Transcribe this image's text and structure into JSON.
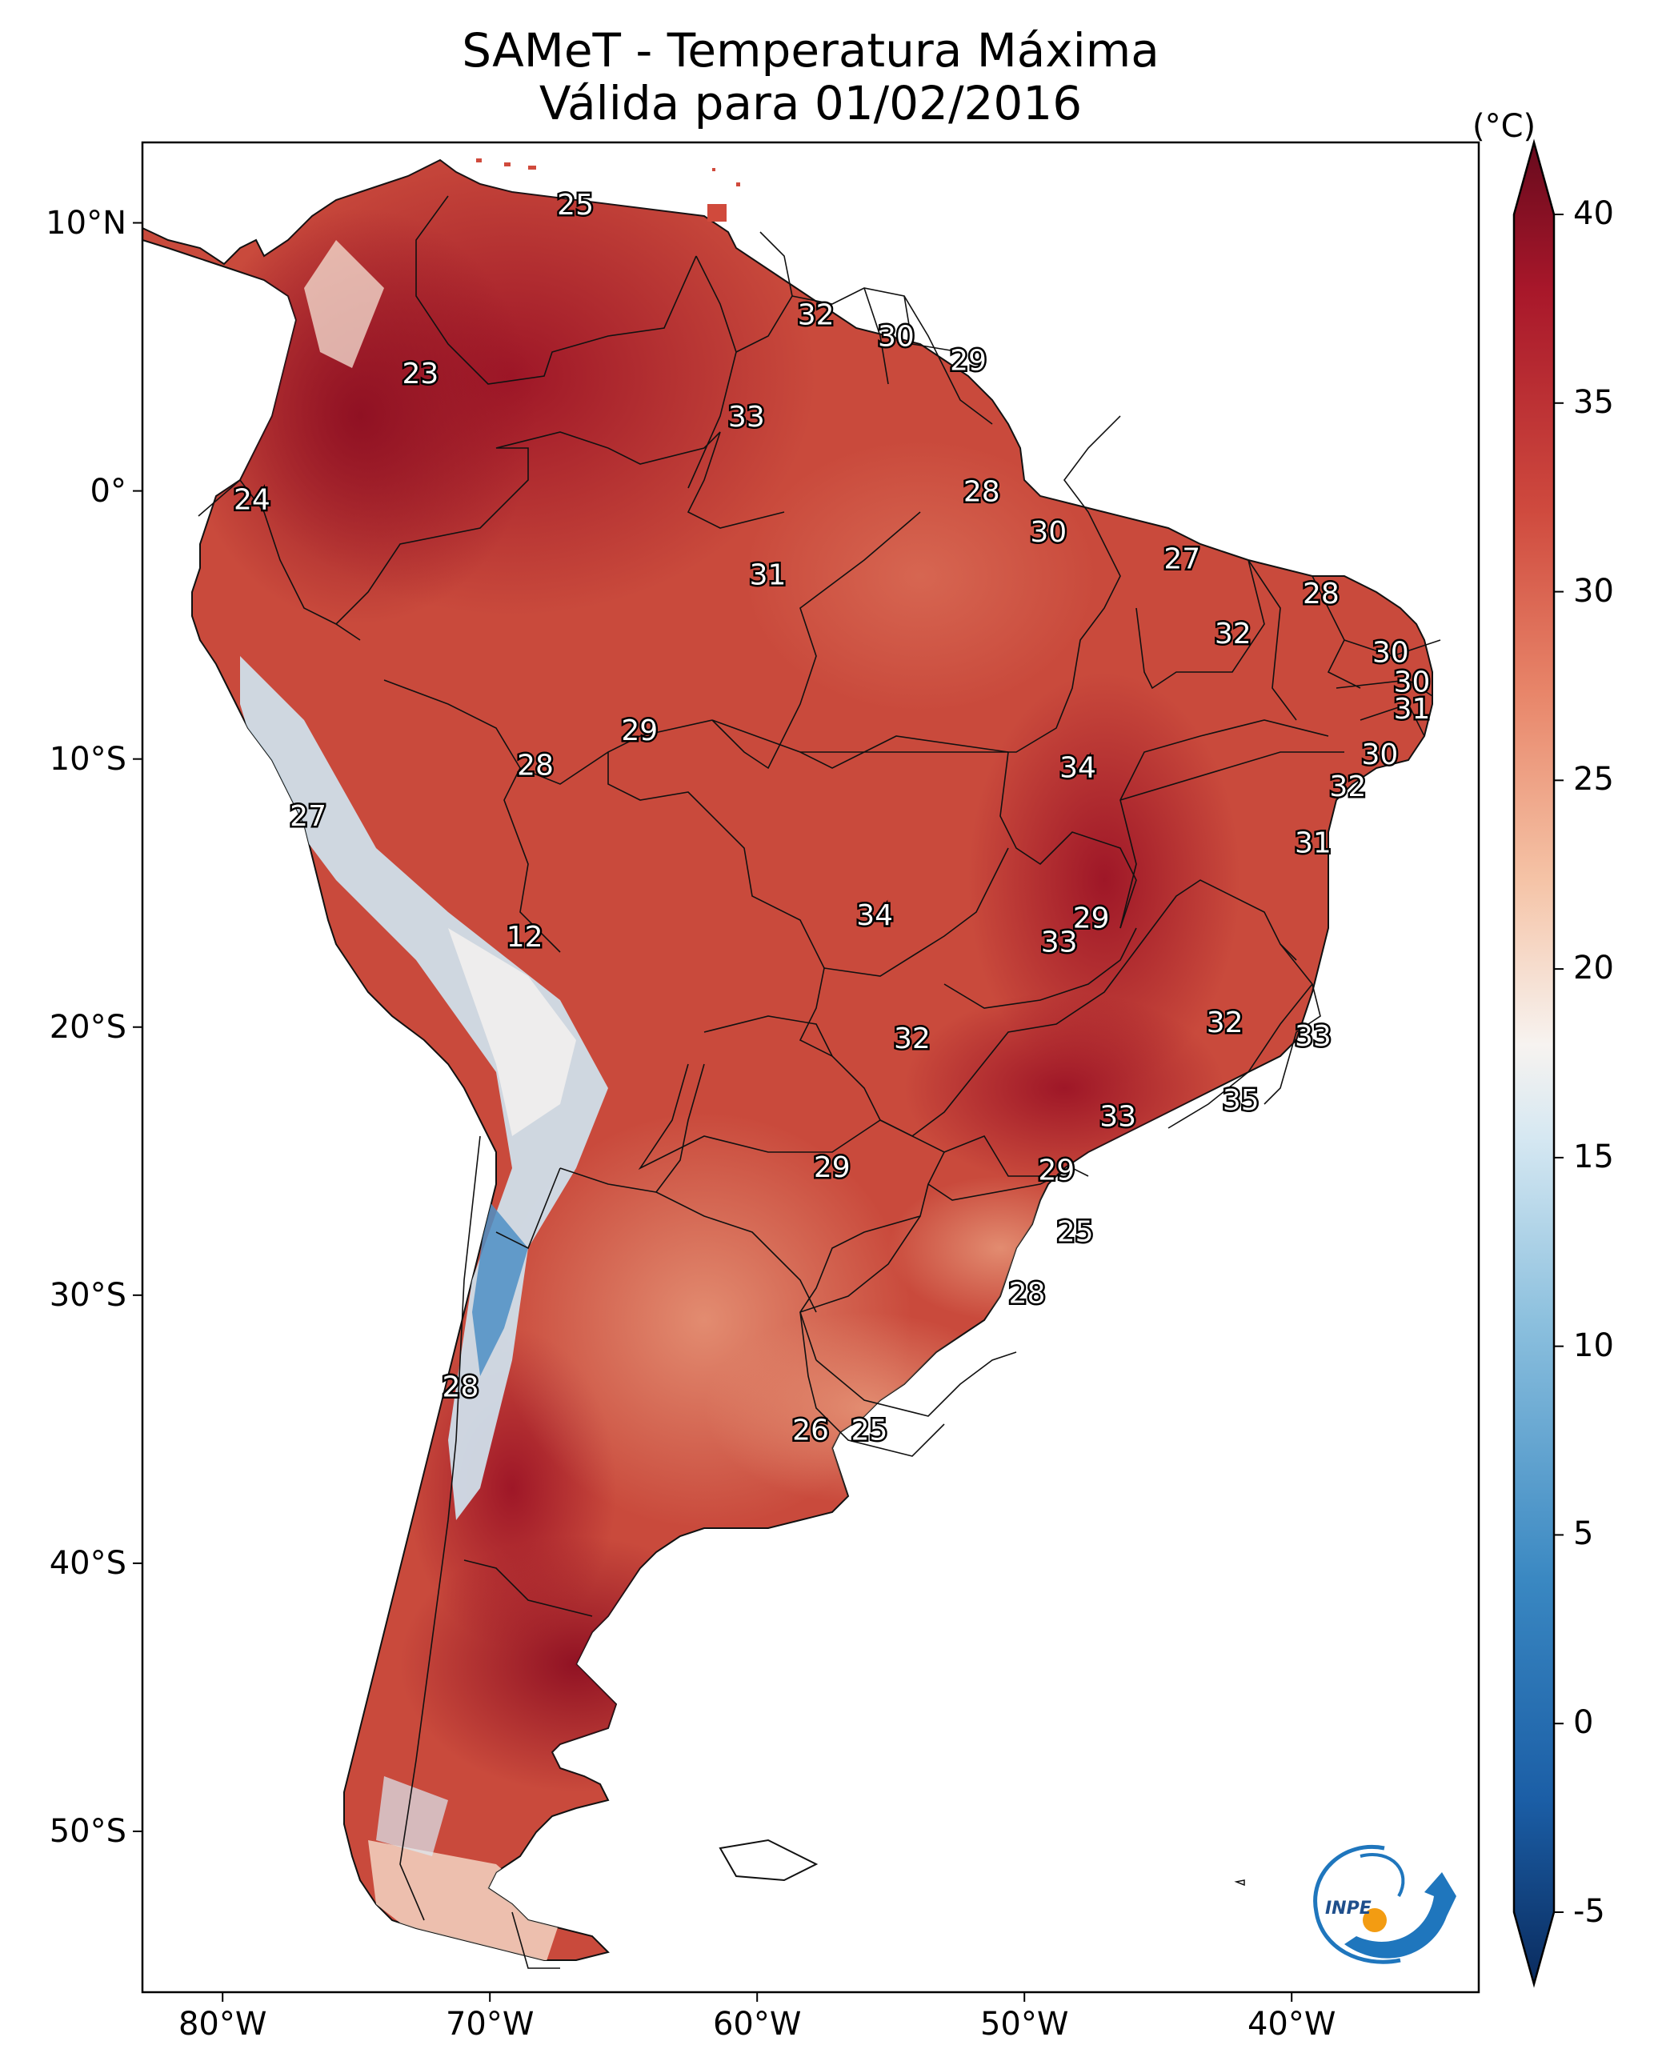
{
  "title": {
    "line1": "SAMeT - Temperatura Máxima",
    "line2": "Válida para 01/02/2016"
  },
  "colorbar": {
    "unit": "(°C)",
    "min": -7,
    "max": 42,
    "ticks": [
      {
        "value": 40,
        "label": "40"
      },
      {
        "value": 35,
        "label": "35"
      },
      {
        "value": 30,
        "label": "30"
      },
      {
        "value": 25,
        "label": "25"
      },
      {
        "value": 20,
        "label": "20"
      },
      {
        "value": 15,
        "label": "15"
      },
      {
        "value": 10,
        "label": "10"
      },
      {
        "value": 5,
        "label": "5"
      },
      {
        "value": 0,
        "label": "0"
      },
      {
        "value": -5,
        "label": "-5"
      }
    ],
    "colors": [
      "#0a2b5e",
      "#1b5ea6",
      "#3a88c2",
      "#8cc0de",
      "#d6e8f2",
      "#f7f3f0",
      "#f5c3a6",
      "#e8866a",
      "#cf4a3e",
      "#a8172a",
      "#670a1d"
    ]
  },
  "axes": {
    "lon_range": [
      -83,
      -33
    ],
    "lat_range": [
      -56,
      13
    ],
    "lat_ticks": [
      {
        "value": 10,
        "label": "10°N"
      },
      {
        "value": 0,
        "label": "0°"
      },
      {
        "value": -10,
        "label": "10°S"
      },
      {
        "value": -20,
        "label": "20°S"
      },
      {
        "value": -30,
        "label": "30°S"
      },
      {
        "value": -40,
        "label": "40°S"
      },
      {
        "value": -50,
        "label": "50°S"
      }
    ],
    "lon_ticks": [
      {
        "value": -80,
        "label": "80°W"
      },
      {
        "value": -70,
        "label": "70°W"
      },
      {
        "value": -60,
        "label": "60°W"
      },
      {
        "value": -50,
        "label": "50°W"
      },
      {
        "value": -40,
        "label": "40°W"
      }
    ]
  },
  "annotations": [
    {
      "lon": -66.8,
      "lat": 10.7,
      "text": "25"
    },
    {
      "lon": -72.6,
      "lat": 4.4,
      "text": "23"
    },
    {
      "lon": -57.8,
      "lat": 6.6,
      "text": "32"
    },
    {
      "lon": -54.8,
      "lat": 5.8,
      "text": "30"
    },
    {
      "lon": -52.1,
      "lat": 4.9,
      "text": "29"
    },
    {
      "lon": -60.4,
      "lat": 2.8,
      "text": "33"
    },
    {
      "lon": -78.9,
      "lat": -0.3,
      "text": "24"
    },
    {
      "lon": -51.6,
      "lat": 0.0,
      "text": "28"
    },
    {
      "lon": -49.1,
      "lat": -1.5,
      "text": "30"
    },
    {
      "lon": -44.1,
      "lat": -2.5,
      "text": "27"
    },
    {
      "lon": -59.6,
      "lat": -3.1,
      "text": "31"
    },
    {
      "lon": -38.9,
      "lat": -3.8,
      "text": "28"
    },
    {
      "lon": -42.2,
      "lat": -5.3,
      "text": "32"
    },
    {
      "lon": -36.3,
      "lat": -6.0,
      "text": "30"
    },
    {
      "lon": -35.5,
      "lat": -7.1,
      "text": "30"
    },
    {
      "lon": -35.5,
      "lat": -8.1,
      "text": "31"
    },
    {
      "lon": -64.4,
      "lat": -8.9,
      "text": "29"
    },
    {
      "lon": -36.7,
      "lat": -9.8,
      "text": "30"
    },
    {
      "lon": -68.3,
      "lat": -10.2,
      "text": "28"
    },
    {
      "lon": -48.0,
      "lat": -10.3,
      "text": "34"
    },
    {
      "lon": -37.9,
      "lat": -11.0,
      "text": "32"
    },
    {
      "lon": -76.8,
      "lat": -12.1,
      "text": "27"
    },
    {
      "lon": -39.2,
      "lat": -13.1,
      "text": "31"
    },
    {
      "lon": -55.6,
      "lat": -15.8,
      "text": "34"
    },
    {
      "lon": -47.5,
      "lat": -15.9,
      "text": "29"
    },
    {
      "lon": -48.7,
      "lat": -16.8,
      "text": "33"
    },
    {
      "lon": -68.7,
      "lat": -16.6,
      "text": "12"
    },
    {
      "lon": -42.5,
      "lat": -19.8,
      "text": "32"
    },
    {
      "lon": -39.2,
      "lat": -20.3,
      "text": "33"
    },
    {
      "lon": -54.2,
      "lat": -20.4,
      "text": "32"
    },
    {
      "lon": -41.9,
      "lat": -22.7,
      "text": "35"
    },
    {
      "lon": -46.5,
      "lat": -23.3,
      "text": "33"
    },
    {
      "lon": -57.2,
      "lat": -25.2,
      "text": "29"
    },
    {
      "lon": -48.8,
      "lat": -25.3,
      "text": "29"
    },
    {
      "lon": -48.1,
      "lat": -27.6,
      "text": "25"
    },
    {
      "lon": -49.9,
      "lat": -29.9,
      "text": "28"
    },
    {
      "lon": -71.1,
      "lat": -33.4,
      "text": "28"
    },
    {
      "lon": -58.0,
      "lat": -35.0,
      "text": "26"
    },
    {
      "lon": -55.8,
      "lat": -35.0,
      "text": "25"
    }
  ],
  "logo_text": "INPE"
}
